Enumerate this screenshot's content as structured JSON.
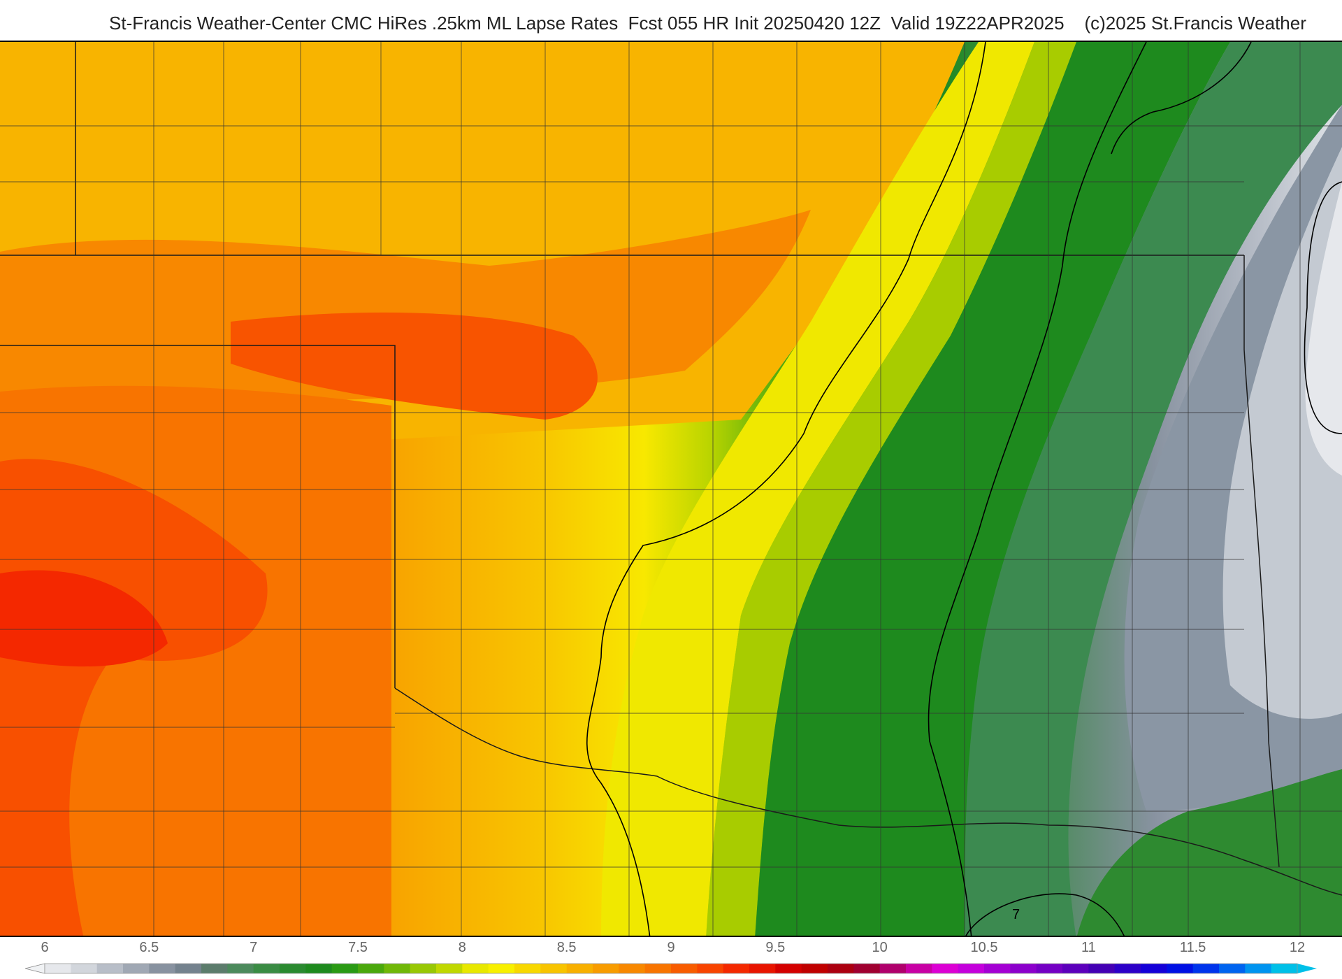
{
  "header": {
    "title": "St-Francis Weather-Center CMC HiRes .25km ML Lapse Rates  Fcst 055 HR Init 20250420 12Z  Valid 19Z22APR2025    (c)2025 St.Francis Weather"
  },
  "map": {
    "contour_labels": [
      {
        "text": "7"
      }
    ]
  },
  "legend": {
    "tick_labels": [
      "6",
      "6.5",
      "7",
      "7.5",
      "8",
      "8.5",
      "9",
      "9.5",
      "10",
      "10.5",
      "11",
      "11.5",
      "12"
    ],
    "min": 6,
    "max": 12,
    "colors": [
      "#e6e8ec",
      "#d2d6dc",
      "#b8bec8",
      "#a0a8b4",
      "#8892a0",
      "#74828e",
      "#5c7c6c",
      "#4c8a5c",
      "#3a8c44",
      "#2a8a30",
      "#1e8a1e",
      "#2a9a14",
      "#4aa80c",
      "#70b808",
      "#98c804",
      "#c0d800",
      "#e8e800",
      "#f8f000",
      "#f8d800",
      "#f8c400",
      "#f8b000",
      "#f89c00",
      "#f88800",
      "#f87400",
      "#f85c00",
      "#f84400",
      "#f42800",
      "#e81400",
      "#d40000",
      "#c00000",
      "#ac0010",
      "#a00030",
      "#b0006c",
      "#c800a4",
      "#dc00d4",
      "#c400dc",
      "#a400d4",
      "#8c00cc",
      "#7400c4",
      "#5c00bc",
      "#4400b4",
      "#2c00c8",
      "#1400d8",
      "#0010e4",
      "#0034ec",
      "#0064f0",
      "#0094f0",
      "#00c0e8"
    ]
  }
}
